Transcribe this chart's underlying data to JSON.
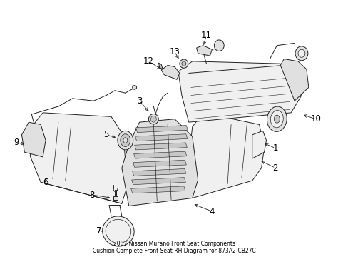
{
  "title": "2007 Nissan Murano Front Seat Components\nCushion Complete-Front Seat RH Diagram for 873A2-CB27C",
  "bg_color": "#ffffff",
  "fig_width": 4.89,
  "fig_height": 3.6,
  "dpi": 100,
  "line_color": "#222222",
  "text_color": "#000000",
  "font_size": 9,
  "label_font_size": 8.5,
  "title_font_size": 5.5,
  "fill_light": "#f0f0f0",
  "fill_mid": "#e0e0e0",
  "fill_dark": "#c8c8c8"
}
